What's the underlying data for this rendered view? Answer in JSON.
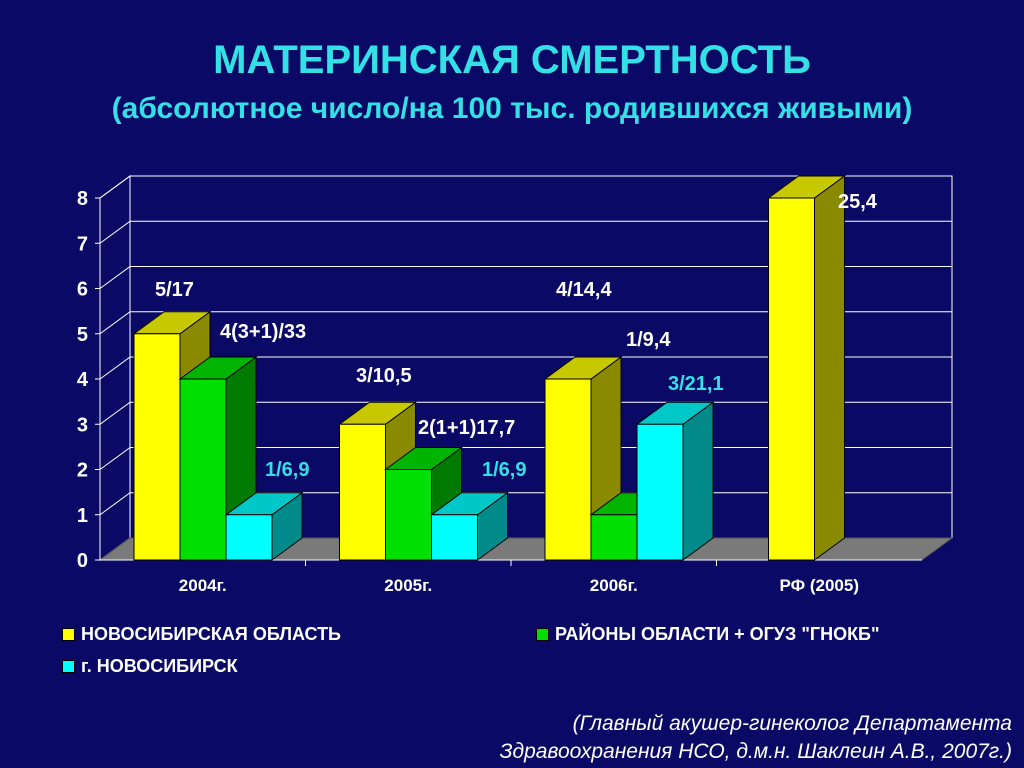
{
  "title": "МАТЕРИНСКАЯ СМЕРТНОСТЬ",
  "subtitle": "(абсолютное число/на 100 тыс. родившихся живыми)",
  "colors": {
    "background": "#0a0a66",
    "title": "#33e0e6",
    "yellow_front": "#ffff00",
    "yellow_side": "#8a8a00",
    "yellow_top": "#c8c800",
    "green_front": "#00e000",
    "green_side": "#007a00",
    "green_top": "#00b400",
    "cyan_front": "#00ffff",
    "cyan_side": "#008a8a",
    "cyan_top": "#00c8c8",
    "floor": "#7a7a7a",
    "grid": "#ffffff"
  },
  "chart_data": {
    "type": "bar",
    "categories": [
      "2004г.",
      "2005г.",
      "2006г.",
      "РФ (2005)"
    ],
    "ylim": [
      0,
      8
    ],
    "yticks": [
      "0",
      "1",
      "2",
      "3",
      "4",
      "5",
      "6",
      "7",
      "8"
    ],
    "series": [
      {
        "name": "НОВОСИБИРСКАЯ ОБЛАСТЬ",
        "color": "#ffff00",
        "values": [
          5,
          3,
          4,
          8
        ],
        "labels": [
          "5/17",
          "3/10,5",
          "4/14,4",
          "25,4"
        ]
      },
      {
        "name": "РАЙОНЫ ОБЛАСТИ + ОГУЗ \"ГНОКБ\"",
        "color": "#00e000",
        "values": [
          4,
          2,
          1,
          null
        ],
        "labels": [
          "4(3+1)/33",
          "2(1+1)17,7",
          "1/9,4",
          ""
        ]
      },
      {
        "name": "г. НОВОСИБИРСК",
        "color": "#00ffff",
        "values": [
          1,
          1,
          3,
          null
        ],
        "labels": [
          "1/6,9",
          "1/6,9",
          "3/21,1",
          ""
        ]
      }
    ]
  },
  "credit": {
    "line1": "(Главный акушер-гинеколог Департамента",
    "line2": "Здравоохранения НСО, д.м.н. Шаклеин А.В., 2007г.)"
  }
}
